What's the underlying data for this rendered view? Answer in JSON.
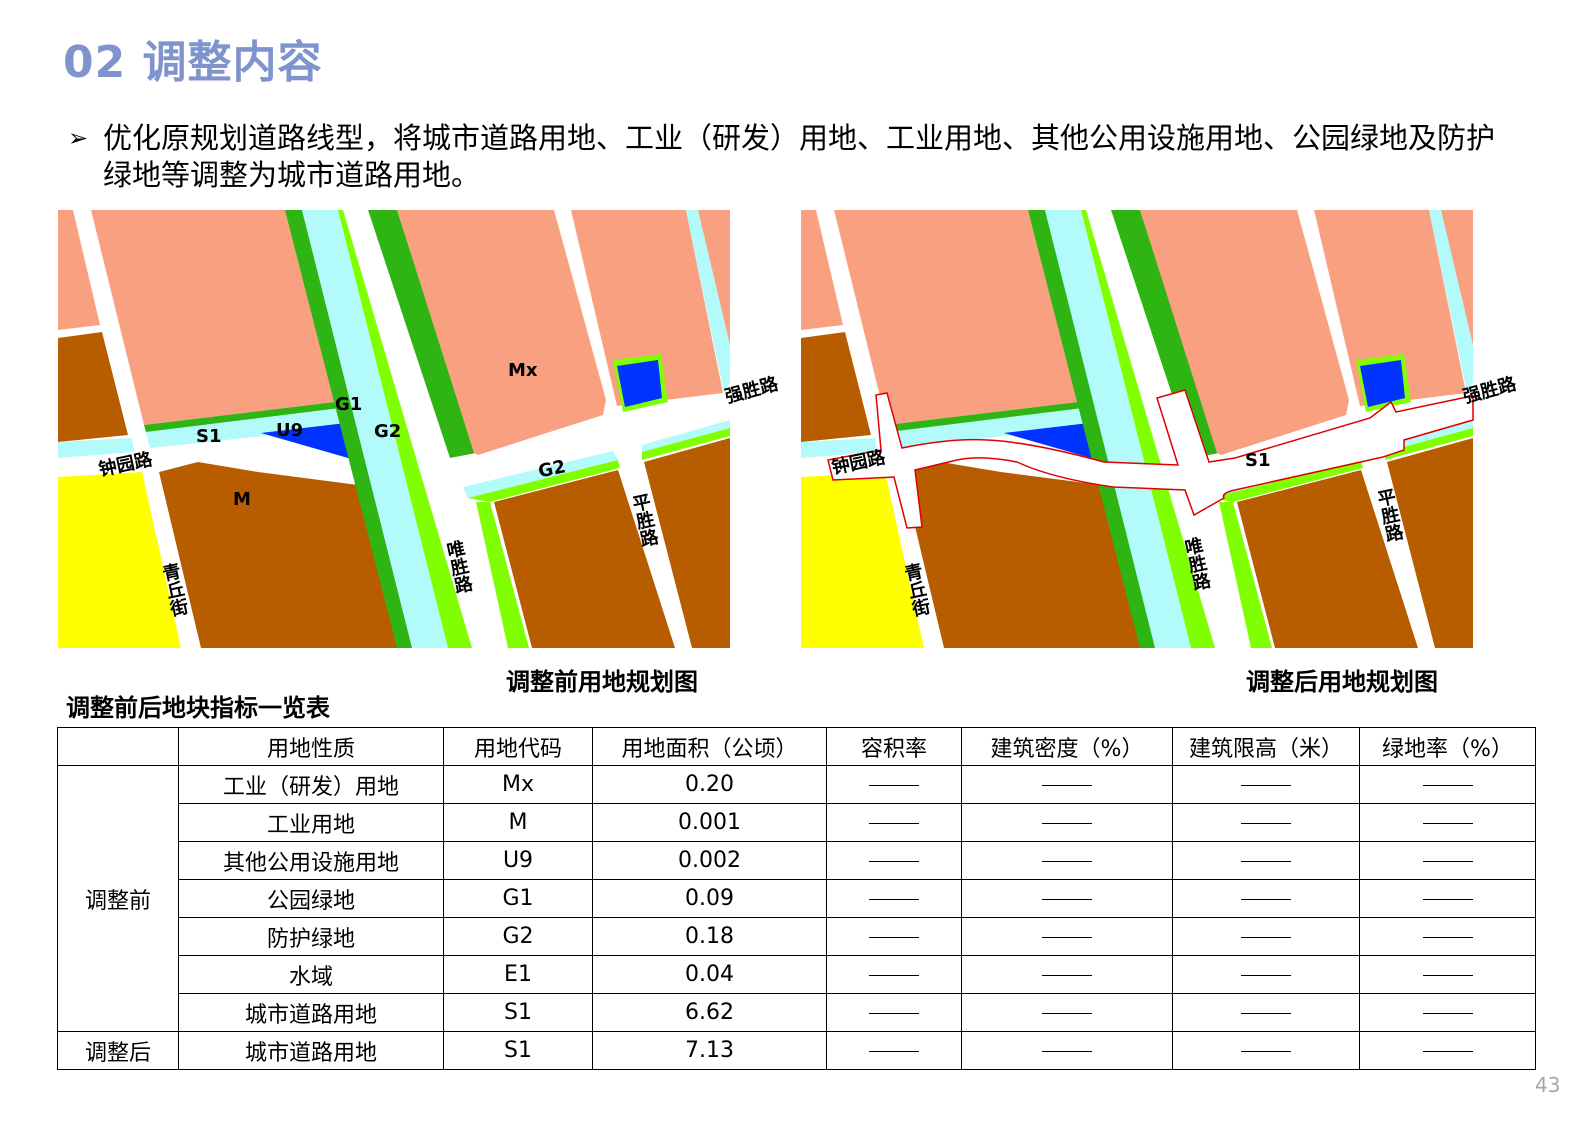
{
  "header": {
    "title": "02 调整内容"
  },
  "bullet": {
    "icon": "arrow-bullet-icon",
    "text": "优化原规划道路线型，将城市道路用地、工业（研发）用地、工业用地、其他公用设施用地、公园绿地及防护绿地等调整为城市道路用地。"
  },
  "colors": {
    "title": "#7f93cc",
    "industrial_rd": "#f9a080",
    "industrial": "#b85c00",
    "green_park": "#2eb513",
    "green_protect": "#80ff00",
    "water": "#b3fafa",
    "utility": "#0033ff",
    "yellow_land": "#ffff00",
    "adjusted_boundary": "#e00000"
  },
  "map_before": {
    "caption": "调整前用地规划图",
    "labels": {
      "mx": "Mx",
      "g1": "G1",
      "s1": "S1",
      "u9": "U9",
      "g2a": "G2",
      "g2b": "G2",
      "m": "M",
      "zhongyuan": "钟园路",
      "weisheng": "唯胜路",
      "qingqiu": "青丘街",
      "pingsheng": "平胜路",
      "qiangsheng": "强胜路"
    }
  },
  "map_after": {
    "caption": "调整后用地规划图",
    "labels": {
      "s1": "S1",
      "zhongyuan": "钟园路",
      "weisheng": "唯胜路",
      "qingqiu": "青丘街",
      "pingsheng": "平胜路",
      "qiangsheng": "强胜路"
    }
  },
  "table": {
    "title": "调整前后地块指标一览表",
    "headers": [
      "",
      "用地性质",
      "用地代码",
      "用地面积（公顷）",
      "容积率",
      "建筑密度（%）",
      "建筑限高（米）",
      "绿地率（%）"
    ],
    "groups": [
      {
        "label": "调整前",
        "rows": [
          {
            "nature": "工业（研发）用地",
            "code": "Mx",
            "area": "0.20"
          },
          {
            "nature": "工业用地",
            "code": "M",
            "area": "0.001"
          },
          {
            "nature": "其他公用设施用地",
            "code": "U9",
            "area": "0.002"
          },
          {
            "nature": "公园绿地",
            "code": "G1",
            "area": "0.09"
          },
          {
            "nature": "防护绿地",
            "code": "G2",
            "area": "0.18"
          },
          {
            "nature": "水域",
            "code": "E1",
            "area": "0.04"
          },
          {
            "nature": "城市道路用地",
            "code": "S1",
            "area": "6.62"
          }
        ]
      },
      {
        "label": "调整后",
        "rows": [
          {
            "nature": "城市道路用地",
            "code": "S1",
            "area": "7.13"
          }
        ]
      }
    ],
    "empty_value": "——"
  },
  "footer": {
    "page_number": "43"
  }
}
